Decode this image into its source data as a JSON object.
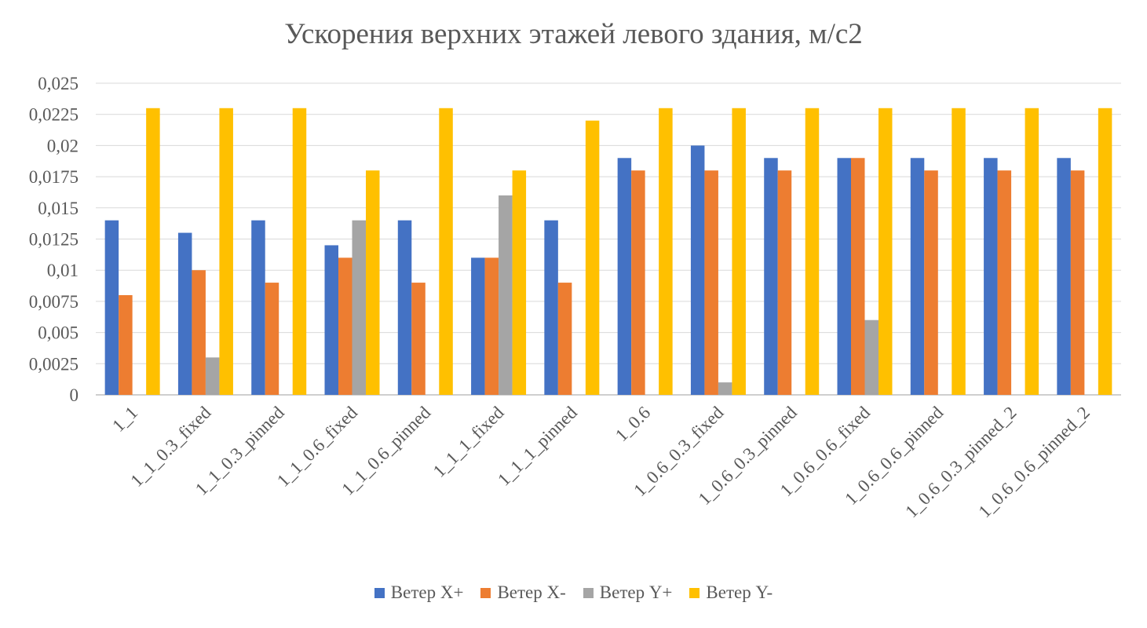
{
  "chart_data": {
    "type": "bar",
    "title": "Ускорения верхних этажей левого здания, м/с2",
    "xlabel": "",
    "ylabel": "",
    "ylim": [
      0,
      0.025
    ],
    "yticks": [
      "0",
      "0,0025",
      "0,005",
      "0,0075",
      "0,01",
      "0,0125",
      "0,015",
      "0,0175",
      "0,02",
      "0,0225",
      "0,025"
    ],
    "grid": true,
    "legend_position": "bottom",
    "categories": [
      "1_1",
      "1_1_0.3_fixed",
      "1_1_0.3_pinned",
      "1_1_0.6_fixed",
      "1_1_0.6_pinned",
      "1_1_1_fixed",
      "1_1_1_pinned",
      "1_0.6",
      "1_0.6_0.3_fixed",
      "1_0.6_0.3_pinned",
      "1_0.6_0.6_fixed",
      "1_0.6_0.6_pinned",
      "1_0.6_0.3_pinned_2",
      "1_0.6_0.6_pinned_2"
    ],
    "series": [
      {
        "name": "Ветер X+",
        "color": "#4472C4",
        "values": [
          0.014,
          0.013,
          0.014,
          0.012,
          0.014,
          0.011,
          0.014,
          0.019,
          0.02,
          0.019,
          0.019,
          0.019,
          0.019,
          0.019
        ]
      },
      {
        "name": "Ветер X-",
        "color": "#ED7D31",
        "values": [
          0.008,
          0.01,
          0.009,
          0.011,
          0.009,
          0.011,
          0.009,
          0.018,
          0.018,
          0.018,
          0.019,
          0.018,
          0.018,
          0.018
        ]
      },
      {
        "name": "Ветер Y+",
        "color": "#A5A5A5",
        "values": [
          0,
          0.003,
          0,
          0.014,
          0,
          0.016,
          0,
          0,
          0.001,
          0,
          0.006,
          0,
          0,
          0
        ]
      },
      {
        "name": "Ветер Y-",
        "color": "#FFC000",
        "values": [
          0.023,
          0.023,
          0.023,
          0.018,
          0.023,
          0.018,
          0.022,
          0.023,
          0.023,
          0.023,
          0.023,
          0.023,
          0.023,
          0.023
        ]
      }
    ]
  }
}
